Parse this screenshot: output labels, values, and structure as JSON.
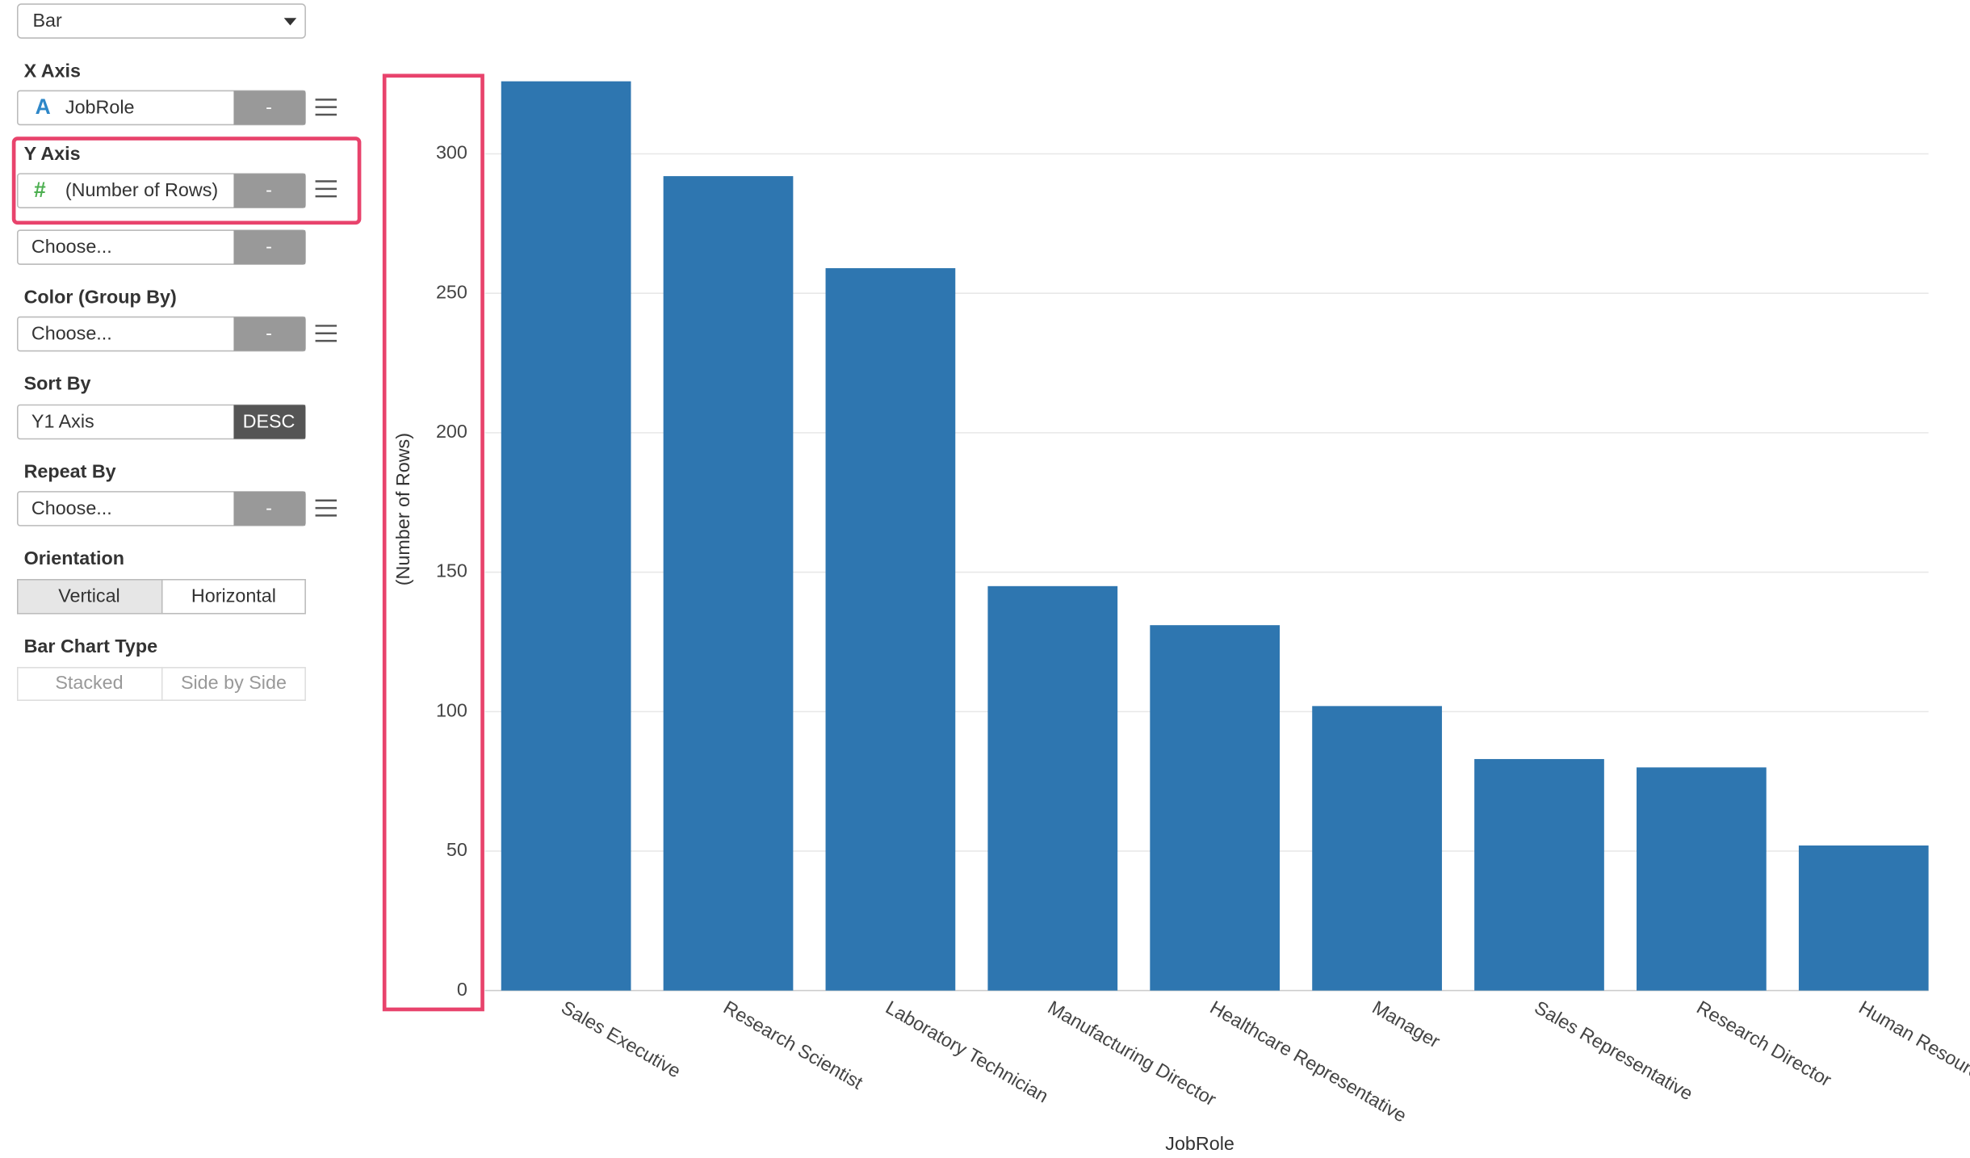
{
  "sidebar": {
    "chart_type": "Bar",
    "x_axis": {
      "label": "X Axis",
      "icon": "A",
      "field": "JobRole",
      "button": "-"
    },
    "y_axis": {
      "label": "Y Axis",
      "icon": "#",
      "field": "(Number of Rows)",
      "button": "-"
    },
    "y_axis_extra": {
      "field": "Choose...",
      "button": "-"
    },
    "color": {
      "label": "Color (Group By)",
      "field": "Choose...",
      "button": "-"
    },
    "sort": {
      "label": "Sort By",
      "field": "Y1 Axis",
      "button": "DESC"
    },
    "repeat": {
      "label": "Repeat By",
      "field": "Choose...",
      "button": "-"
    },
    "orientation": {
      "label": "Orientation",
      "options": [
        "Vertical",
        "Horizontal"
      ]
    },
    "bar_type": {
      "label": "Bar Chart Type",
      "options": [
        "Stacked",
        "Side by Side"
      ]
    }
  },
  "chart_data": {
    "type": "bar",
    "x_label": "JobRole",
    "y_label": "(Number of Rows)",
    "categories": [
      "Sales Executive",
      "Research Scientist",
      "Laboratory Technician",
      "Manufacturing Director",
      "Healthcare Representative",
      "Manager",
      "Sales Representative",
      "Research Director",
      "Human Resources"
    ],
    "values": [
      326,
      292,
      259,
      145,
      131,
      102,
      83,
      80,
      52
    ],
    "color": "#2e76b0",
    "ylim": [
      0,
      328
    ],
    "yticks": [
      0,
      50,
      100,
      150,
      200,
      250,
      300
    ],
    "grid": true
  }
}
